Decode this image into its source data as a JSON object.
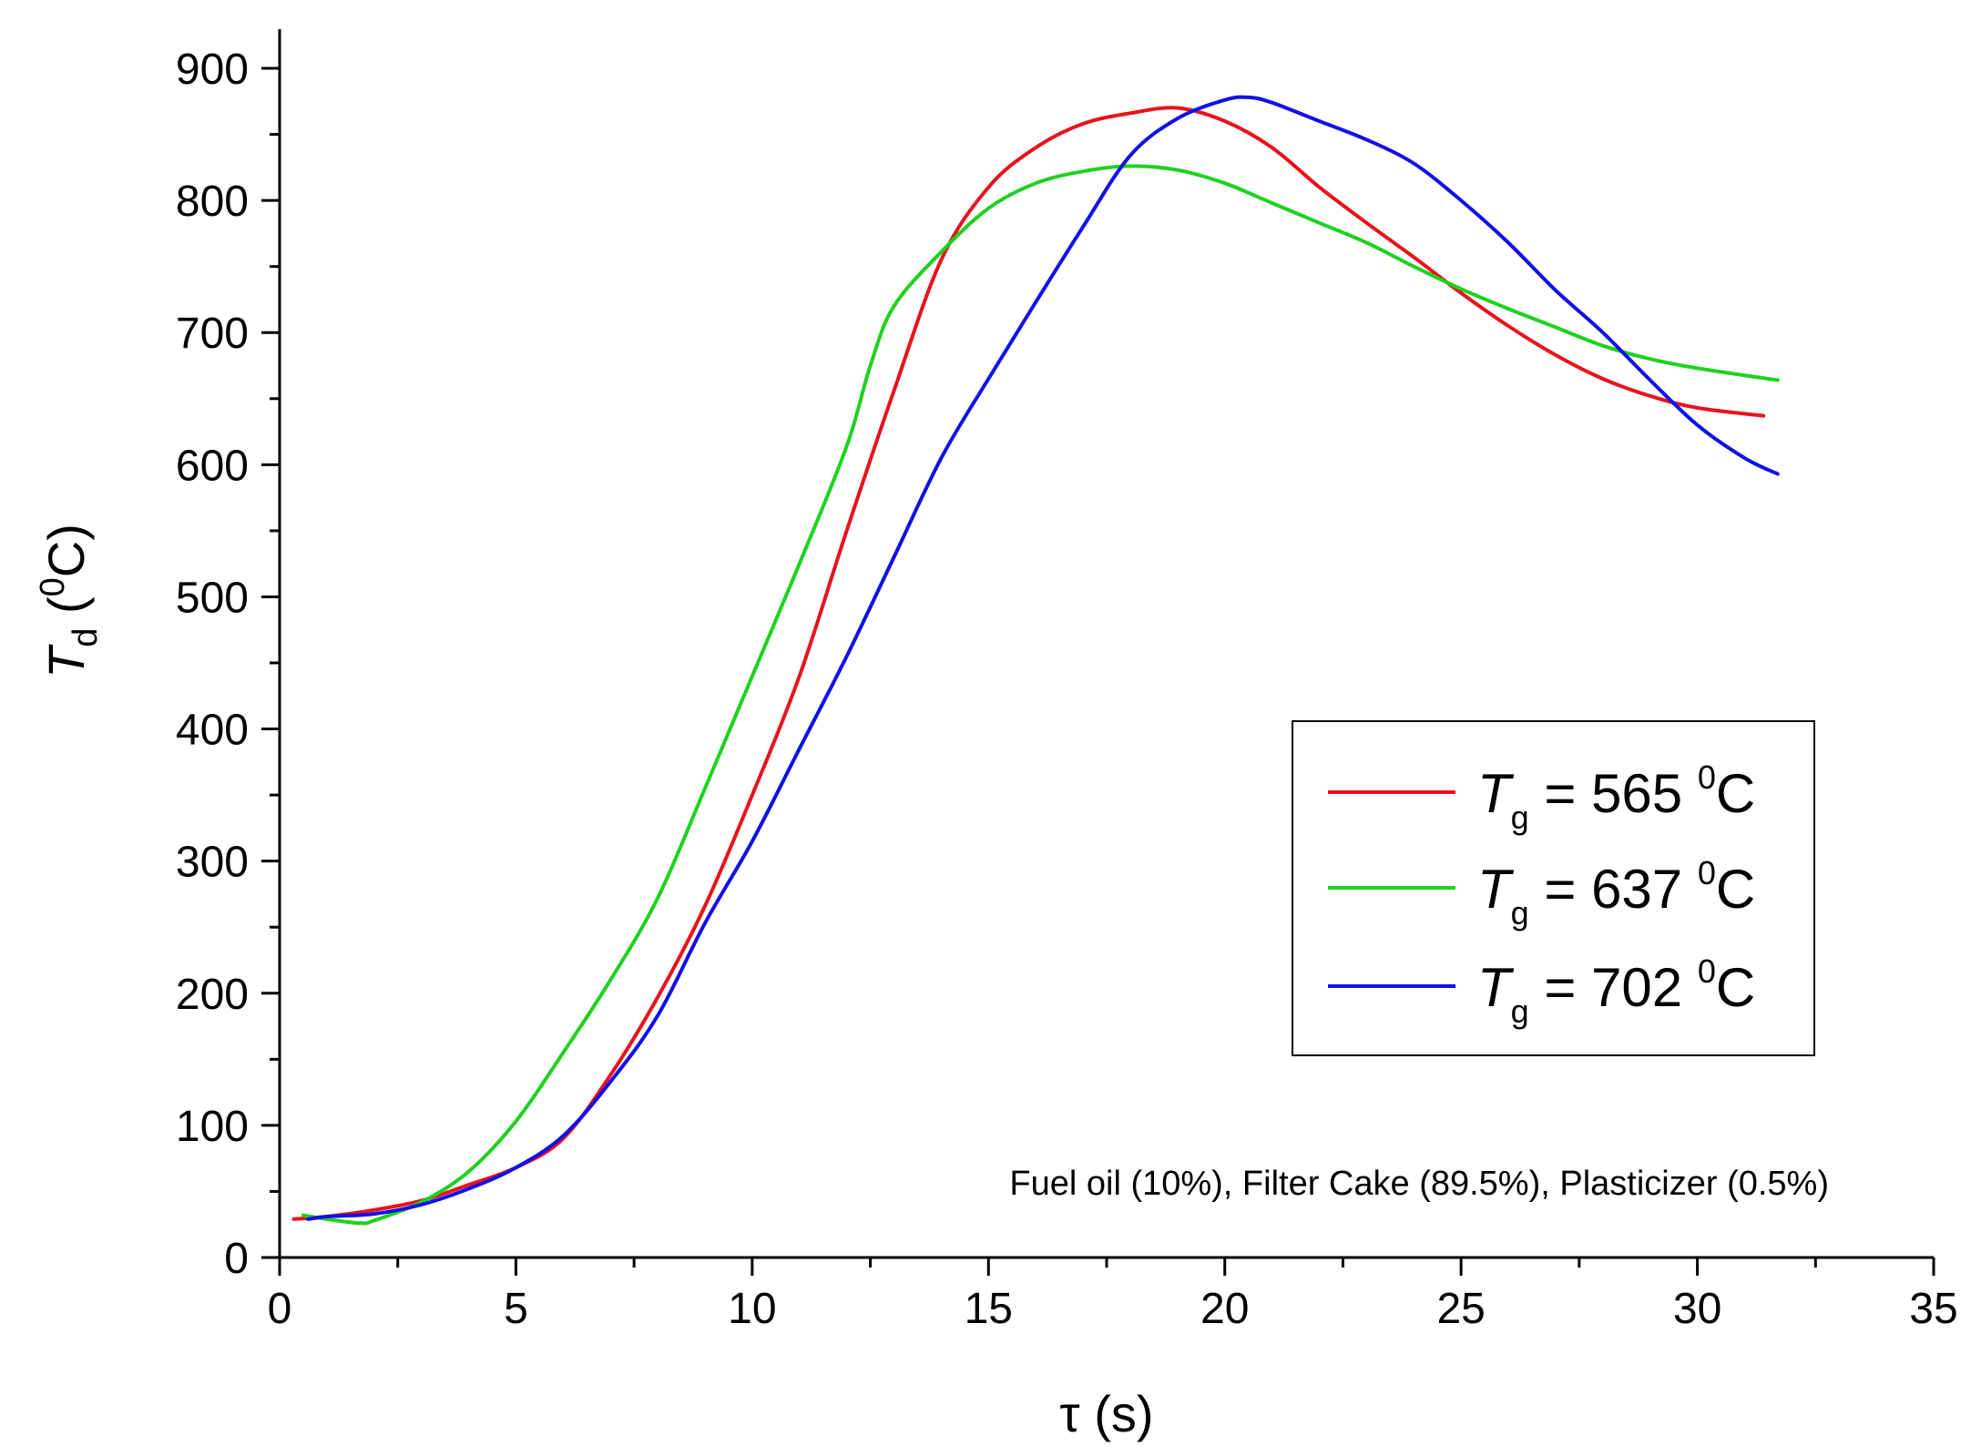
{
  "chart_data": {
    "type": "line",
    "title": "",
    "xlabel": {
      "symbol": "τ",
      "unit": "(s)"
    },
    "ylabel": {
      "symbol": "T",
      "subscript": "d",
      "unit_prefix": "(",
      "unit_sup": "0",
      "unit_suffix": "C)"
    },
    "xlim": [
      0,
      35
    ],
    "ylim": [
      0,
      900
    ],
    "x_ticks": [
      0,
      5,
      10,
      15,
      20,
      25,
      30,
      35
    ],
    "y_ticks": [
      0,
      100,
      200,
      300,
      400,
      500,
      600,
      700,
      800,
      900
    ],
    "grid": false,
    "legend_position": "right-middle",
    "annotation": "Fuel oil (10%), Filter Cake (89.5%), Plasticizer (0.5%)",
    "series": [
      {
        "name": "T_g = 565 °C",
        "label": {
          "symbol": "T",
          "subscript": "g",
          "eq": " = 565 ",
          "sup": "0",
          "unit": "C"
        },
        "color": "#e8131b",
        "x": [
          0.3,
          1,
          2,
          3,
          4,
          5,
          6,
          7,
          8,
          9,
          10,
          11,
          12,
          13,
          14,
          15,
          16,
          17,
          18,
          19,
          20,
          21,
          22,
          23,
          24,
          25,
          26,
          27,
          28,
          29,
          30,
          31.4
        ],
        "y": [
          29,
          31,
          36,
          43,
          55,
          68,
          90,
          138,
          197,
          266,
          350,
          440,
          550,
          656,
          755,
          810,
          840,
          858,
          866,
          870,
          860,
          840,
          810,
          783,
          757,
          730,
          705,
          683,
          665,
          652,
          643,
          637
        ]
      },
      {
        "name": "T_g = 637 °C",
        "label": {
          "symbol": "T",
          "subscript": "g",
          "eq": " = 637 ",
          "sup": "0",
          "unit": "C"
        },
        "color": "#1fd11f",
        "x": [
          0.5,
          1,
          1.7,
          2,
          3,
          4,
          5,
          6,
          7,
          8,
          9,
          10,
          11,
          12,
          12.5,
          13,
          14,
          15,
          16,
          17,
          18,
          19,
          20,
          21,
          22,
          23,
          24,
          25,
          26,
          27,
          28,
          29,
          30,
          31.7
        ],
        "y": [
          32,
          29,
          26,
          28,
          42,
          65,
          103,
          155,
          210,
          272,
          355,
          440,
          525,
          614,
          675,
          720,
          761,
          794,
          813,
          822,
          826,
          823,
          813,
          798,
          783,
          768,
          750,
          733,
          718,
          704,
          690,
          680,
          673,
          664
        ]
      },
      {
        "name": "T_g = 702 °C",
        "label": {
          "symbol": "T",
          "subscript": "g",
          "eq": " = 702 ",
          "sup": "0",
          "unit": "C"
        },
        "color": "#1010e8",
        "x": [
          0.6,
          1,
          2,
          3,
          4,
          5,
          6,
          7,
          8,
          9,
          10,
          11,
          12,
          13,
          14,
          15,
          16,
          17,
          18,
          19,
          20,
          20.5,
          21,
          22,
          23,
          24,
          25,
          26,
          27,
          28,
          29,
          30,
          31,
          31.7
        ],
        "y": [
          29,
          31,
          33,
          40,
          52,
          68,
          92,
          133,
          183,
          253,
          315,
          385,
          455,
          530,
          605,
          665,
          723,
          780,
          834,
          862,
          876,
          878,
          874,
          860,
          846,
          828,
          800,
          768,
          732,
          700,
          664,
          630,
          605,
          593
        ]
      }
    ]
  }
}
